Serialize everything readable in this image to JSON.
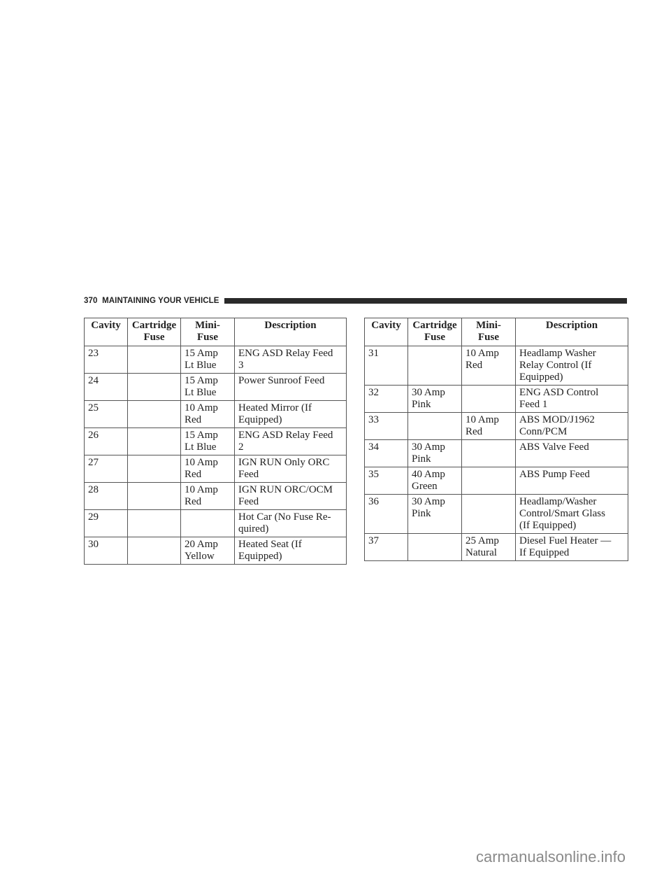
{
  "header": {
    "page_number": "370",
    "section_title": "MAINTAINING YOUR VEHICLE"
  },
  "columns": [
    "Cavity",
    "Cartridge\nFuse",
    "Mini-\nFuse",
    "Description"
  ],
  "left_table": [
    {
      "cavity": "23",
      "cartridge": "",
      "mini": "15 Amp\nLt Blue",
      "description": "ENG ASD Relay Feed\n3"
    },
    {
      "cavity": "24",
      "cartridge": "",
      "mini": "15 Amp\nLt Blue",
      "description": "Power Sunroof Feed"
    },
    {
      "cavity": "25",
      "cartridge": "",
      "mini": "10 Amp\nRed",
      "description": "Heated Mirror (If\nEquipped)"
    },
    {
      "cavity": "26",
      "cartridge": "",
      "mini": "15 Amp\nLt Blue",
      "description": "ENG ASD Relay Feed\n2"
    },
    {
      "cavity": "27",
      "cartridge": "",
      "mini": "10 Amp\nRed",
      "description": "IGN RUN Only ORC\nFeed"
    },
    {
      "cavity": "28",
      "cartridge": "",
      "mini": "10 Amp\nRed",
      "description": "IGN RUN ORC/OCM\nFeed"
    },
    {
      "cavity": "29",
      "cartridge": "",
      "mini": "",
      "description": "Hot Car (No Fuse Re-\nquired)"
    },
    {
      "cavity": "30",
      "cartridge": "",
      "mini": "20 Amp\nYellow",
      "description": "Heated Seat (If\nEquipped)"
    }
  ],
  "right_table": [
    {
      "cavity": "31",
      "cartridge": "",
      "mini": "10 Amp\nRed",
      "description": "Headlamp Washer\nRelay Control (If\nEquipped)"
    },
    {
      "cavity": "32",
      "cartridge": "30 Amp\nPink",
      "mini": "",
      "description": "ENG ASD Control\nFeed 1"
    },
    {
      "cavity": "33",
      "cartridge": "",
      "mini": "10 Amp\nRed",
      "description": "ABS MOD/J1962\nConn/PCM"
    },
    {
      "cavity": "34",
      "cartridge": "30 Amp\nPink",
      "mini": "",
      "description": "ABS Valve Feed"
    },
    {
      "cavity": "35",
      "cartridge": "40 Amp\nGreen",
      "mini": "",
      "description": "ABS Pump Feed"
    },
    {
      "cavity": "36",
      "cartridge": "30 Amp\nPink",
      "mini": "",
      "description": "Headlamp/Washer\nControl/Smart Glass\n(If Equipped)"
    },
    {
      "cavity": "37",
      "cartridge": "",
      "mini": "25 Amp\nNatural",
      "description": "Diesel Fuel Heater —\nIf Equipped"
    }
  ],
  "watermark": "carmanualsonline.info"
}
